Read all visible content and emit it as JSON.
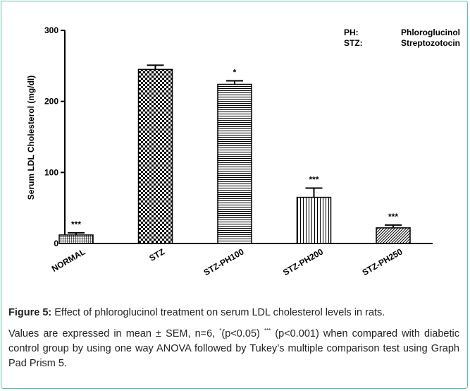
{
  "chart_data": {
    "type": "bar",
    "ylabel": "Serum LDL Cholesterol (mg/dl)",
    "categories": [
      "NORMAL",
      "STZ",
      "STZ-PH100",
      "STZ-PH200",
      "STZ-PH250"
    ],
    "values": [
      12,
      245,
      224,
      65,
      22
    ],
    "errors": [
      3,
      6,
      5,
      13,
      4
    ],
    "value_annotations": [
      "***",
      null,
      "*",
      "***",
      "***"
    ],
    "patterns": [
      "grid",
      "check",
      "hlines",
      "vlines",
      "diag"
    ],
    "ylim": [
      0,
      300
    ],
    "yticks": [
      0,
      100,
      200,
      300
    ],
    "legend_notes": [
      {
        "abbr": "PH:",
        "full": "Phloroglucinol"
      },
      {
        "abbr": "STZ:",
        "full": "Streptozotocin"
      }
    ]
  },
  "caption": {
    "label": "Figure 5:",
    "text": "Effect of phloroglucinol treatment on serum LDL cholesterol levels in rats.",
    "note": [
      "Values are expressed in mean ± SEM, n=6, ",
      "*",
      "(p<0.05) ",
      "***",
      " (p<0.001) when compared with diabetic control group by using one way ANOVA followed by Tukey’s multiple comparison test using Graph Pad Prism 5."
    ]
  }
}
